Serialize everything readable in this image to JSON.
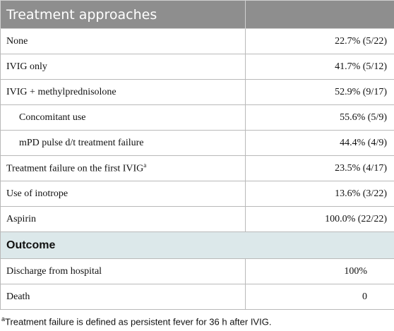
{
  "header": {
    "title": "Treatment approaches"
  },
  "table": {
    "rows": [
      {
        "label": "None",
        "value": "22.7% (5/22)"
      },
      {
        "label": "IVIG only",
        "value": "41.7% (5/12)"
      },
      {
        "label": "IVIG + methylprednisolone",
        "value": "52.9% (9/17)"
      },
      {
        "label": "Concomitant use",
        "value": "55.6% (5/9)"
      },
      {
        "label": "mPD pulse d/t treatment failure",
        "value": "44.4% (4/9)"
      },
      {
        "label": "Treatment failure on the first IVIG",
        "note": "a",
        "value": "23.5% (4/17)"
      },
      {
        "label": "Use of inotrope",
        "value": "13.6% (3/22)"
      },
      {
        "label": "Aspirin",
        "value": "100.0% (22/22)"
      }
    ]
  },
  "section": {
    "title": "Outcome"
  },
  "outcome": {
    "rows": [
      {
        "label": "Discharge from hospital",
        "value": "100%"
      },
      {
        "label": "Death",
        "value": "0"
      }
    ]
  },
  "footnote": {
    "marker": "a",
    "text": "Treatment failure is defined as persistent fever for 36 h after IVIG."
  }
}
